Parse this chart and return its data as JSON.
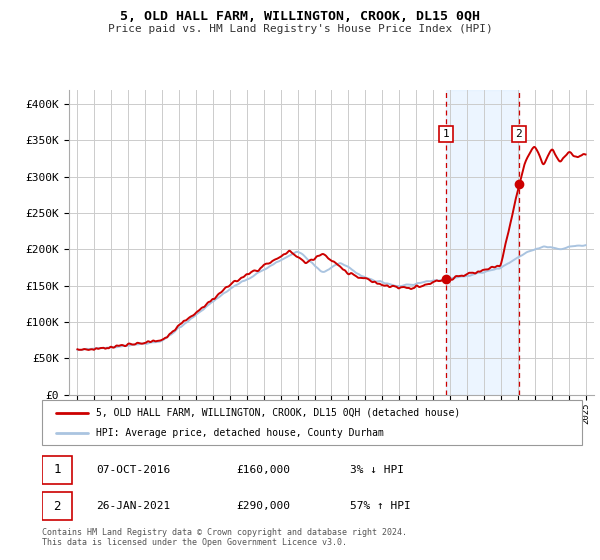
{
  "title": "5, OLD HALL FARM, WILLINGTON, CROOK, DL15 0QH",
  "subtitle": "Price paid vs. HM Land Registry's House Price Index (HPI)",
  "legend_line1": "5, OLD HALL FARM, WILLINGTON, CROOK, DL15 0QH (detached house)",
  "legend_line2": "HPI: Average price, detached house, County Durham",
  "annotation1_date": "07-OCT-2016",
  "annotation1_price": "£160,000",
  "annotation1_hpi": "3% ↓ HPI",
  "annotation2_date": "26-JAN-2021",
  "annotation2_price": "£290,000",
  "annotation2_hpi": "57% ↑ HPI",
  "footnote1": "Contains HM Land Registry data © Crown copyright and database right 2024.",
  "footnote2": "This data is licensed under the Open Government Licence v3.0.",
  "xlim": [
    1994.5,
    2025.5
  ],
  "ylim": [
    0,
    420000
  ],
  "sale1_x": 2016.77,
  "sale1_y": 160000,
  "sale2_x": 2021.07,
  "sale2_y": 290000,
  "background_color": "#ffffff",
  "plot_bg_color": "#ffffff",
  "grid_color": "#cccccc",
  "hpi_color": "#aac4e0",
  "price_color": "#cc0000",
  "shade_color": "#ddeeff",
  "vline_color": "#cc0000",
  "ann_box_color": "#cc0000"
}
